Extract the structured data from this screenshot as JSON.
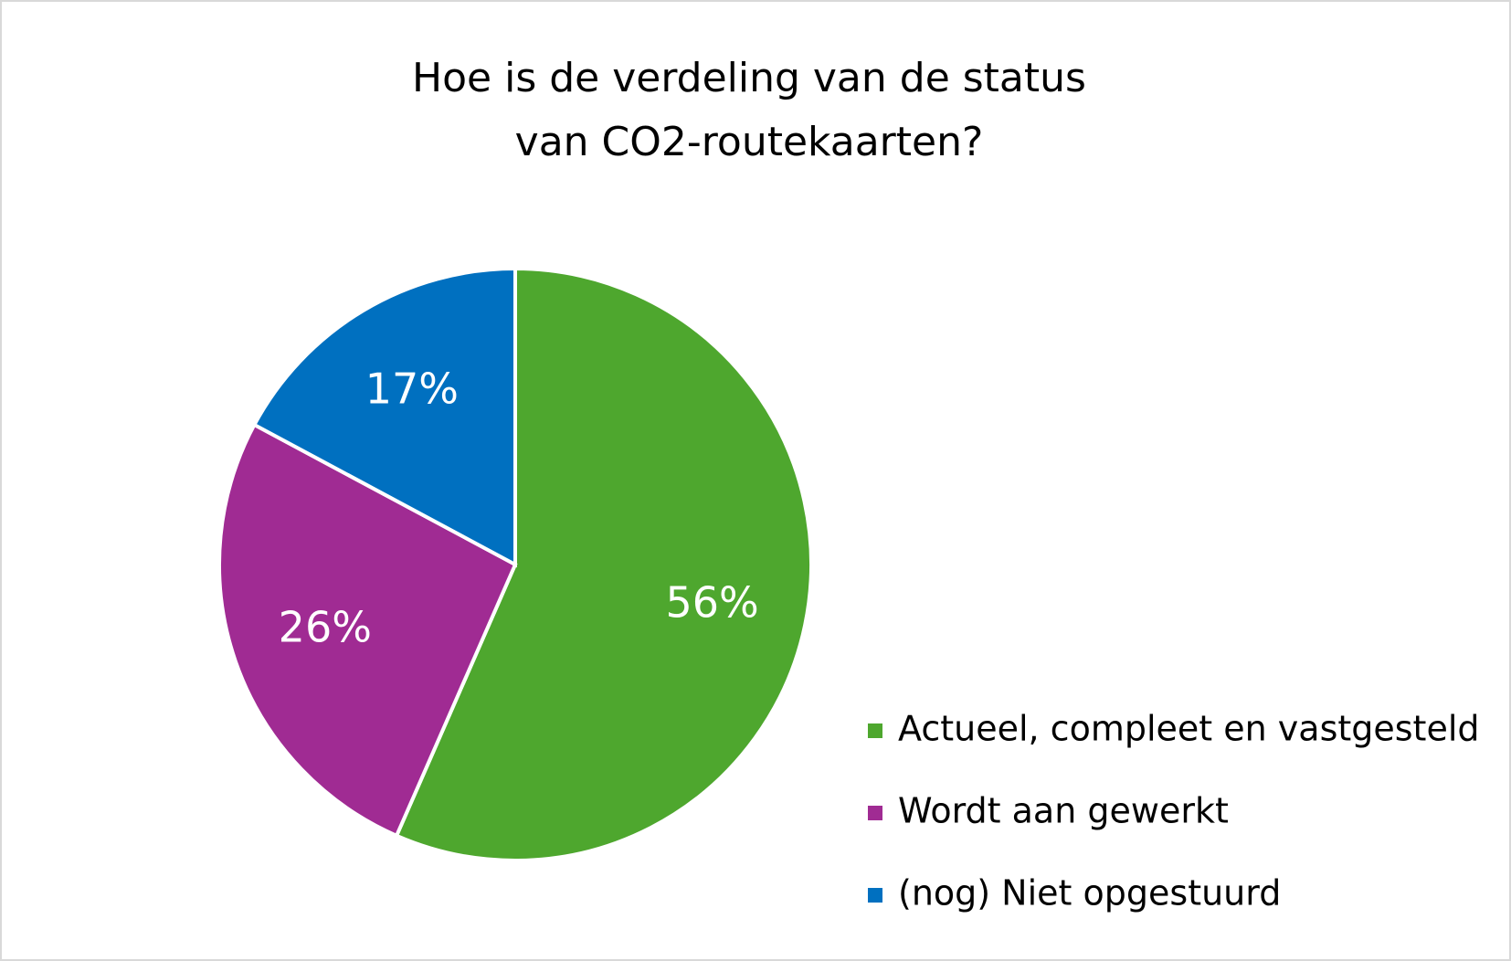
{
  "chart_data": {
    "type": "pie",
    "title": [
      "Hoe is de verdeling van de status",
      "van CO2-routekaarten?"
    ],
    "categories": [
      "Actueel, compleet en vastgesteld",
      "Wordt aan gewerkt",
      "(nog) Niet opgestuurd"
    ],
    "values": [
      56,
      26,
      17
    ],
    "value_labels": [
      "56%",
      "26%",
      "17%"
    ],
    "colors": [
      "#4ea72e",
      "#a02b93",
      "#0070c0"
    ],
    "legend": "right"
  }
}
